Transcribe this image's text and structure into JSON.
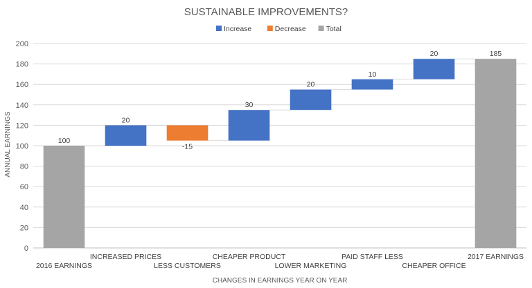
{
  "chart_data": {
    "type": "bar",
    "subtype": "waterfall",
    "title": "SUSTAINABLE IMPROVEMENTS?",
    "xlabel": "CHANGES IN EARNINGS YEAR ON YEAR",
    "ylabel": "ANNUAL EARNINGS",
    "ylim": [
      0,
      200
    ],
    "yticks": [
      0,
      20,
      40,
      60,
      80,
      100,
      120,
      140,
      160,
      180,
      200
    ],
    "grid": true,
    "legend": {
      "position": "top",
      "entries": [
        {
          "name": "Increase",
          "color": "#4472C4"
        },
        {
          "name": "Decrease",
          "color": "#ED7D31"
        },
        {
          "name": "Total",
          "color": "#A5A5A5"
        }
      ]
    },
    "categories": [
      "2016 EARNINGS",
      "INCREASED PRICES",
      "LESS CUSTOMERS",
      "CHEAPER PRODUCT",
      "LOWER MARKETING",
      "PAID STAFF LESS",
      "CHEAPER OFFICE",
      "2017 EARNINGS"
    ],
    "values": [
      100,
      20,
      -15,
      30,
      20,
      10,
      20,
      185
    ],
    "kinds": [
      "total",
      "increase",
      "decrease",
      "increase",
      "increase",
      "increase",
      "increase",
      "total"
    ],
    "data_labels": [
      "100",
      "20",
      "-15",
      "30",
      "20",
      "10",
      "20",
      "185"
    ]
  }
}
